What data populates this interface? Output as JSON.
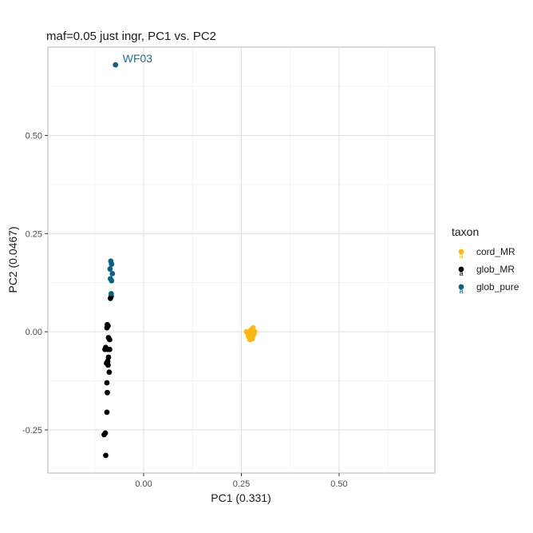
{
  "chart_data": {
    "type": "scatter",
    "title": "maf=0.05 just ingr, PC1 vs. PC2",
    "xlabel": "PC1 (0.331)",
    "ylabel": "PC2 (0.0467)",
    "xlim": [
      -0.245,
      0.745
    ],
    "ylim": [
      -0.36,
      0.725
    ],
    "xticks": [
      0.0,
      0.25,
      0.5
    ],
    "xtick_labels": [
      "0.00",
      "0.25",
      "0.50"
    ],
    "yticks": [
      -0.25,
      0.0,
      0.25,
      0.5
    ],
    "ytick_labels": [
      "-0.25",
      "0.00",
      "0.25",
      "0.50"
    ],
    "grid": true,
    "legend": {
      "title": "taxon",
      "placement": "right"
    },
    "series": [
      {
        "name": "cord_MR",
        "color": "#F9B916",
        "points": [
          [
            0.263,
            0.0
          ],
          [
            0.272,
            -0.003
          ],
          [
            0.28,
            0.01
          ],
          [
            0.276,
            -0.002
          ],
          [
            0.27,
            -0.008
          ],
          [
            0.282,
            -0.005
          ],
          [
            0.268,
            -0.012
          ],
          [
            0.275,
            -0.015
          ],
          [
            0.278,
            -0.018
          ],
          [
            0.272,
            -0.02
          ],
          [
            0.28,
            -0.01
          ],
          [
            0.266,
            -0.004
          ],
          [
            0.274,
            0.004
          ],
          [
            0.284,
            0.0
          ]
        ]
      },
      {
        "name": "glob_MR",
        "color": "#000000",
        "points": [
          [
            -0.085,
            0.085
          ],
          [
            -0.083,
            0.09
          ],
          [
            -0.093,
            0.018
          ],
          [
            -0.091,
            0.015
          ],
          [
            -0.094,
            0.01
          ],
          [
            -0.09,
            -0.015
          ],
          [
            -0.087,
            -0.02
          ],
          [
            -0.097,
            -0.04
          ],
          [
            -0.092,
            -0.045
          ],
          [
            -0.087,
            -0.045
          ],
          [
            -0.099,
            -0.045
          ],
          [
            -0.09,
            -0.065
          ],
          [
            -0.092,
            -0.075
          ],
          [
            -0.095,
            -0.08
          ],
          [
            -0.091,
            -0.085
          ],
          [
            -0.088,
            -0.103
          ],
          [
            -0.094,
            -0.13
          ],
          [
            -0.093,
            -0.155
          ],
          [
            -0.094,
            -0.205
          ],
          [
            -0.098,
            -0.258
          ],
          [
            -0.101,
            -0.262
          ],
          [
            -0.097,
            -0.315
          ]
        ]
      },
      {
        "name": "glob_pure",
        "color": "#0E6282",
        "points": [
          [
            -0.072,
            0.68
          ],
          [
            -0.084,
            0.18
          ],
          [
            -0.082,
            0.172
          ],
          [
            -0.086,
            0.16
          ],
          [
            -0.08,
            0.148
          ],
          [
            -0.082,
            0.13
          ],
          [
            -0.085,
            0.135
          ],
          [
            -0.083,
            0.097
          ]
        ]
      }
    ],
    "annotations": [
      {
        "text": "WF03",
        "x": -0.072,
        "y": 0.68,
        "color": "#1F6F8F"
      }
    ]
  }
}
